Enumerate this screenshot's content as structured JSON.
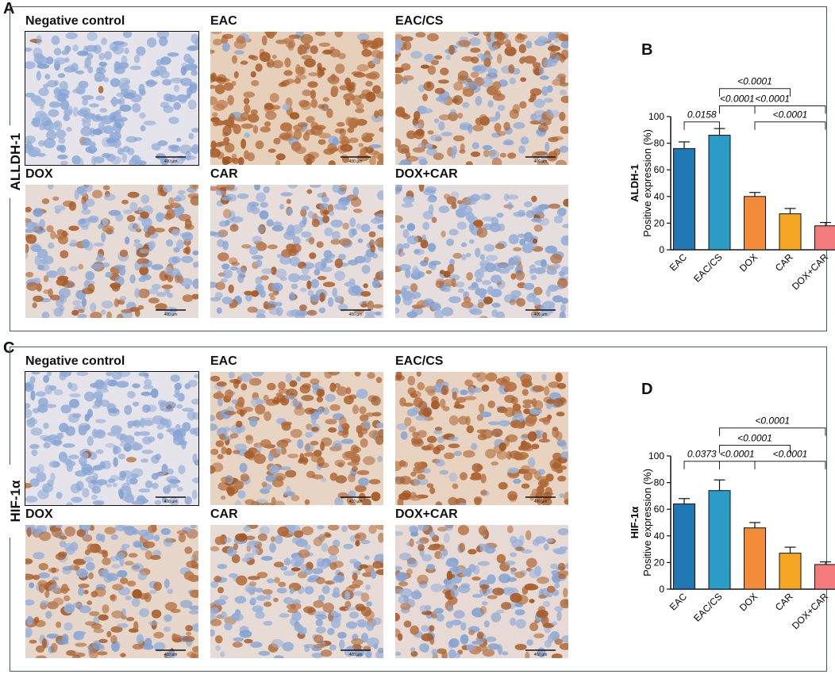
{
  "panels": {
    "A": {
      "letter": "A",
      "marker": "ALLDH-1"
    },
    "B": {
      "letter": "B"
    },
    "C": {
      "letter": "C",
      "marker": "HIF-1α"
    },
    "D": {
      "letter": "D"
    }
  },
  "micrographs": {
    "titles": [
      "Negative control",
      "EAC",
      "EAC/CS",
      "DOX",
      "CAR",
      "DOX+CAR"
    ],
    "scale_bar_label": "400 µm",
    "stain_colors": {
      "hematoxylin": "#7f9fd0",
      "dab_brown": "#a0521e",
      "background": "#e6e4ec"
    },
    "dab_levels_A": [
      0.02,
      0.92,
      0.6,
      0.42,
      0.32,
      0.28
    ],
    "dab_levels_C": [
      0.02,
      0.75,
      0.8,
      0.6,
      0.42,
      0.45
    ]
  },
  "chart_data": [
    {
      "type": "bar",
      "panel": "B",
      "categories": [
        "EAC",
        "EAC/CS",
        "DOX",
        "CAR",
        "DOX+CAR"
      ],
      "values": [
        76,
        86,
        40,
        27,
        18
      ],
      "errors": [
        5,
        5,
        3,
        4,
        2.5
      ],
      "colors": [
        "#1f77b4",
        "#2b9cc6",
        "#f28c3a",
        "#f5a623",
        "#f47b7b"
      ],
      "ylabel_main": "ALDH-1",
      "ylabel_sub": "Positive expression (%)",
      "ylim": [
        0,
        100
      ],
      "yticks": [
        0,
        20,
        40,
        60,
        80,
        100
      ],
      "comparisons": [
        {
          "from": 0,
          "to": 1,
          "p": "0.0158"
        },
        {
          "from": 1,
          "to": 2,
          "p": "<0.0001"
        },
        {
          "from": 2,
          "to": 4,
          "p": "<0.0001"
        },
        {
          "from": 1,
          "to": 4,
          "p": "<0.0001"
        },
        {
          "from": 1,
          "to": 3,
          "p": "<0.0001"
        }
      ]
    },
    {
      "type": "bar",
      "panel": "D",
      "categories": [
        "EAC",
        "EAC/CS",
        "DOX",
        "CAR",
        "DOX+CAR"
      ],
      "values": [
        64,
        74,
        46,
        27,
        18.5
      ],
      "errors": [
        4,
        8,
        4,
        4.5,
        2
      ],
      "colors": [
        "#1f77b4",
        "#2b9cc6",
        "#f28c3a",
        "#f5a623",
        "#f47b7b"
      ],
      "ylabel_main": "HIF-1α",
      "ylabel_sub": "Positive expression (%)",
      "ylim": [
        0,
        100
      ],
      "yticks": [
        0,
        20,
        40,
        60,
        80,
        100
      ],
      "comparisons": [
        {
          "from": 0,
          "to": 1,
          "p": "0.0373"
        },
        {
          "from": 1,
          "to": 3,
          "p": "<0.0001"
        },
        {
          "from": 1,
          "to": 2,
          "p": "<0.0001"
        },
        {
          "from": 2,
          "to": 4,
          "p": "<0.0001"
        },
        {
          "from": 1,
          "to": 4,
          "p": "<0.0001"
        }
      ]
    }
  ]
}
